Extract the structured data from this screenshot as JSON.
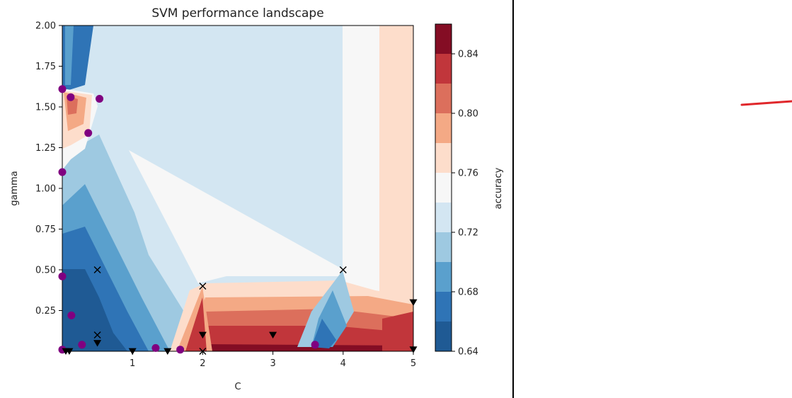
{
  "chart_data": {
    "type": "contour",
    "title": "SVM performance landscape",
    "xlabel": "C",
    "ylabel": "gamma",
    "colorbar_label": "accuracy",
    "xlim": [
      0,
      5
    ],
    "ylim": [
      0,
      2
    ],
    "xticks": [
      "1",
      "2",
      "3",
      "4",
      "5"
    ],
    "xtick_values": [
      1,
      2,
      3,
      4,
      5
    ],
    "yticks": [
      "0.25",
      "0.50",
      "0.75",
      "1.00",
      "1.25",
      "1.50",
      "1.75",
      "2.00"
    ],
    "ytick_values": [
      0.25,
      0.5,
      0.75,
      1.0,
      1.25,
      1.5,
      1.75,
      2.0
    ],
    "colorbar": {
      "range": [
        0.64,
        0.86
      ],
      "ticks": [
        "0.64",
        "0.68",
        "0.72",
        "0.76",
        "0.80",
        "0.84"
      ],
      "tick_values": [
        0.64,
        0.68,
        0.72,
        0.76,
        0.8,
        0.84
      ],
      "levels": [
        0.64,
        0.66,
        0.68,
        0.7,
        0.72,
        0.74,
        0.76,
        0.78,
        0.8,
        0.82,
        0.84,
        0.86
      ],
      "colors": [
        "#1f5a94",
        "#2f74b6",
        "#5aa0cd",
        "#9ec9e1",
        "#d3e6f2",
        "#f7f7f7",
        "#fdddcb",
        "#f4a985",
        "#dc6f5c",
        "#c1363b",
        "#840d24"
      ],
      "colormap": "RdBu_r"
    },
    "markers": {
      "purple_circles": {
        "color": "#800080",
        "points": [
          [
            0.0,
            1.61
          ],
          [
            0.12,
            1.56
          ],
          [
            0.53,
            1.55
          ],
          [
            0.37,
            1.34
          ],
          [
            0.0,
            1.1
          ],
          [
            0.0,
            0.46
          ],
          [
            0.13,
            0.22
          ],
          [
            0.28,
            0.04
          ],
          [
            1.33,
            0.02
          ],
          [
            1.68,
            0.01
          ],
          [
            3.6,
            0.04
          ],
          [
            0.0,
            0.01
          ]
        ]
      },
      "crosses": {
        "color": "#000000",
        "points": [
          [
            0.5,
            0.5
          ],
          [
            2.0,
            0.4
          ],
          [
            4.0,
            0.5
          ],
          [
            0.5,
            0.1
          ],
          [
            2.0,
            0.0
          ]
        ]
      },
      "triangles": {
        "color": "#000000",
        "points": [
          [
            0.5,
            0.05
          ],
          [
            1.0,
            0.0
          ],
          [
            1.5,
            0.0
          ],
          [
            2.0,
            0.1
          ],
          [
            3.0,
            0.1
          ],
          [
            5.0,
            0.3
          ],
          [
            5.0,
            0.01
          ],
          [
            0.05,
            0.0
          ],
          [
            0.1,
            0.0
          ]
        ]
      }
    }
  }
}
